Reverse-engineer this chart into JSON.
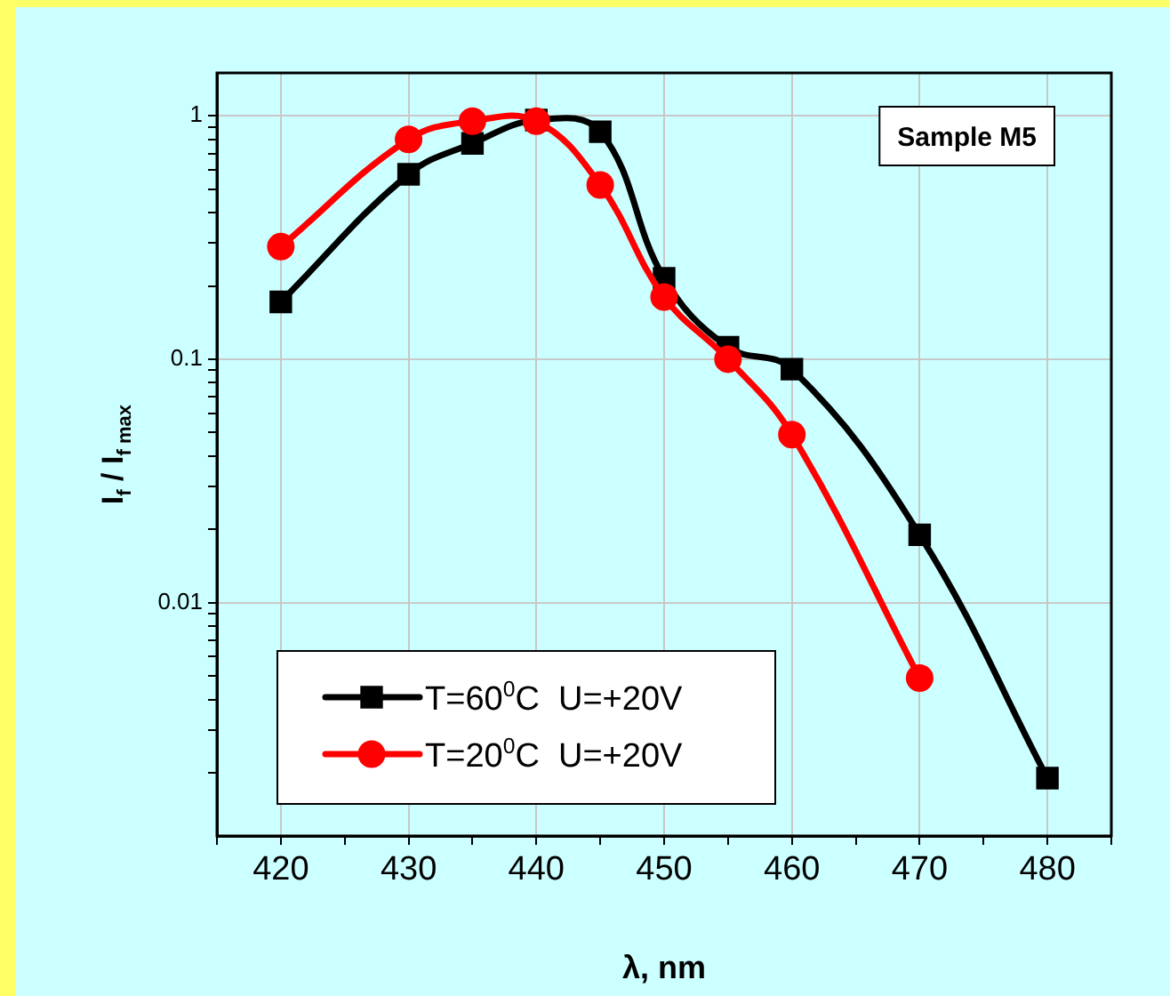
{
  "chart_data": {
    "type": "line",
    "xlabel": "λ, nm",
    "ylabel": "I$_{f}$ / I$_{f max}$",
    "annotations": [
      "Sample M5"
    ],
    "x": [
      420,
      430,
      435,
      440,
      445,
      450,
      455,
      460,
      470,
      480
    ],
    "series": [
      {
        "name": "T=60$^{0}$C  U=+20V",
        "color": "#000000",
        "marker": "square",
        "values": [
          0.172,
          0.575,
          0.77,
          0.96,
          0.86,
          0.215,
          0.112,
          0.091,
          0.019,
          0.0019
        ]
      },
      {
        "name": "T=20$^{0}$C  U=+20V",
        "color": "#ff0000",
        "marker": "circle",
        "values": [
          0.29,
          0.8,
          0.95,
          0.95,
          0.52,
          0.18,
          0.1,
          0.049,
          0.0049,
          null
        ]
      }
    ],
    "log": "y",
    "xlim": [
      415,
      485
    ],
    "ylim": [
      0.0011,
      1.5
    ],
    "xticks": [
      {
        "value": 415,
        "label": null
      },
      420,
      {
        "value": 425,
        "label": null
      },
      430,
      {
        "value": 435,
        "label": null
      },
      440,
      {
        "value": 445,
        "label": null
      },
      450,
      {
        "value": 455,
        "label": null
      },
      460,
      {
        "value": 465,
        "label": null
      },
      470,
      {
        "value": 475,
        "label": null
      },
      480,
      {
        "value": 485,
        "label": null
      }
    ],
    "yticks": [
      {
        "value": 0.002,
        "label": null
      },
      {
        "value": 0.003,
        "label": null
      },
      {
        "value": 0.004,
        "label": null
      },
      {
        "value": 0.005,
        "label": null
      },
      {
        "value": 0.006,
        "label": null
      },
      {
        "value": 0.007,
        "label": null
      },
      {
        "value": 0.008,
        "label": null
      },
      {
        "value": 0.009,
        "label": null
      },
      0.01,
      {
        "value": 0.02,
        "label": null
      },
      {
        "value": 0.03,
        "label": null
      },
      {
        "value": 0.04,
        "label": null
      },
      {
        "value": 0.05,
        "label": null
      },
      {
        "value": 0.06,
        "label": null
      },
      {
        "value": 0.07,
        "label": null
      },
      {
        "value": 0.08,
        "label": null
      },
      {
        "value": 0.09,
        "label": null
      },
      0.1,
      {
        "value": 0.2,
        "label": null
      },
      {
        "value": 0.3,
        "label": null
      },
      {
        "value": 0.4,
        "label": null
      },
      {
        "value": 0.5,
        "label": null
      },
      {
        "value": 0.6,
        "label": null
      },
      {
        "value": 0.7,
        "label": null
      },
      {
        "value": 0.8,
        "label": null
      },
      {
        "value": 0.9,
        "label": null
      },
      1
    ],
    "grid": true,
    "legend": "bottom left",
    "line_style": "solid"
  }
}
